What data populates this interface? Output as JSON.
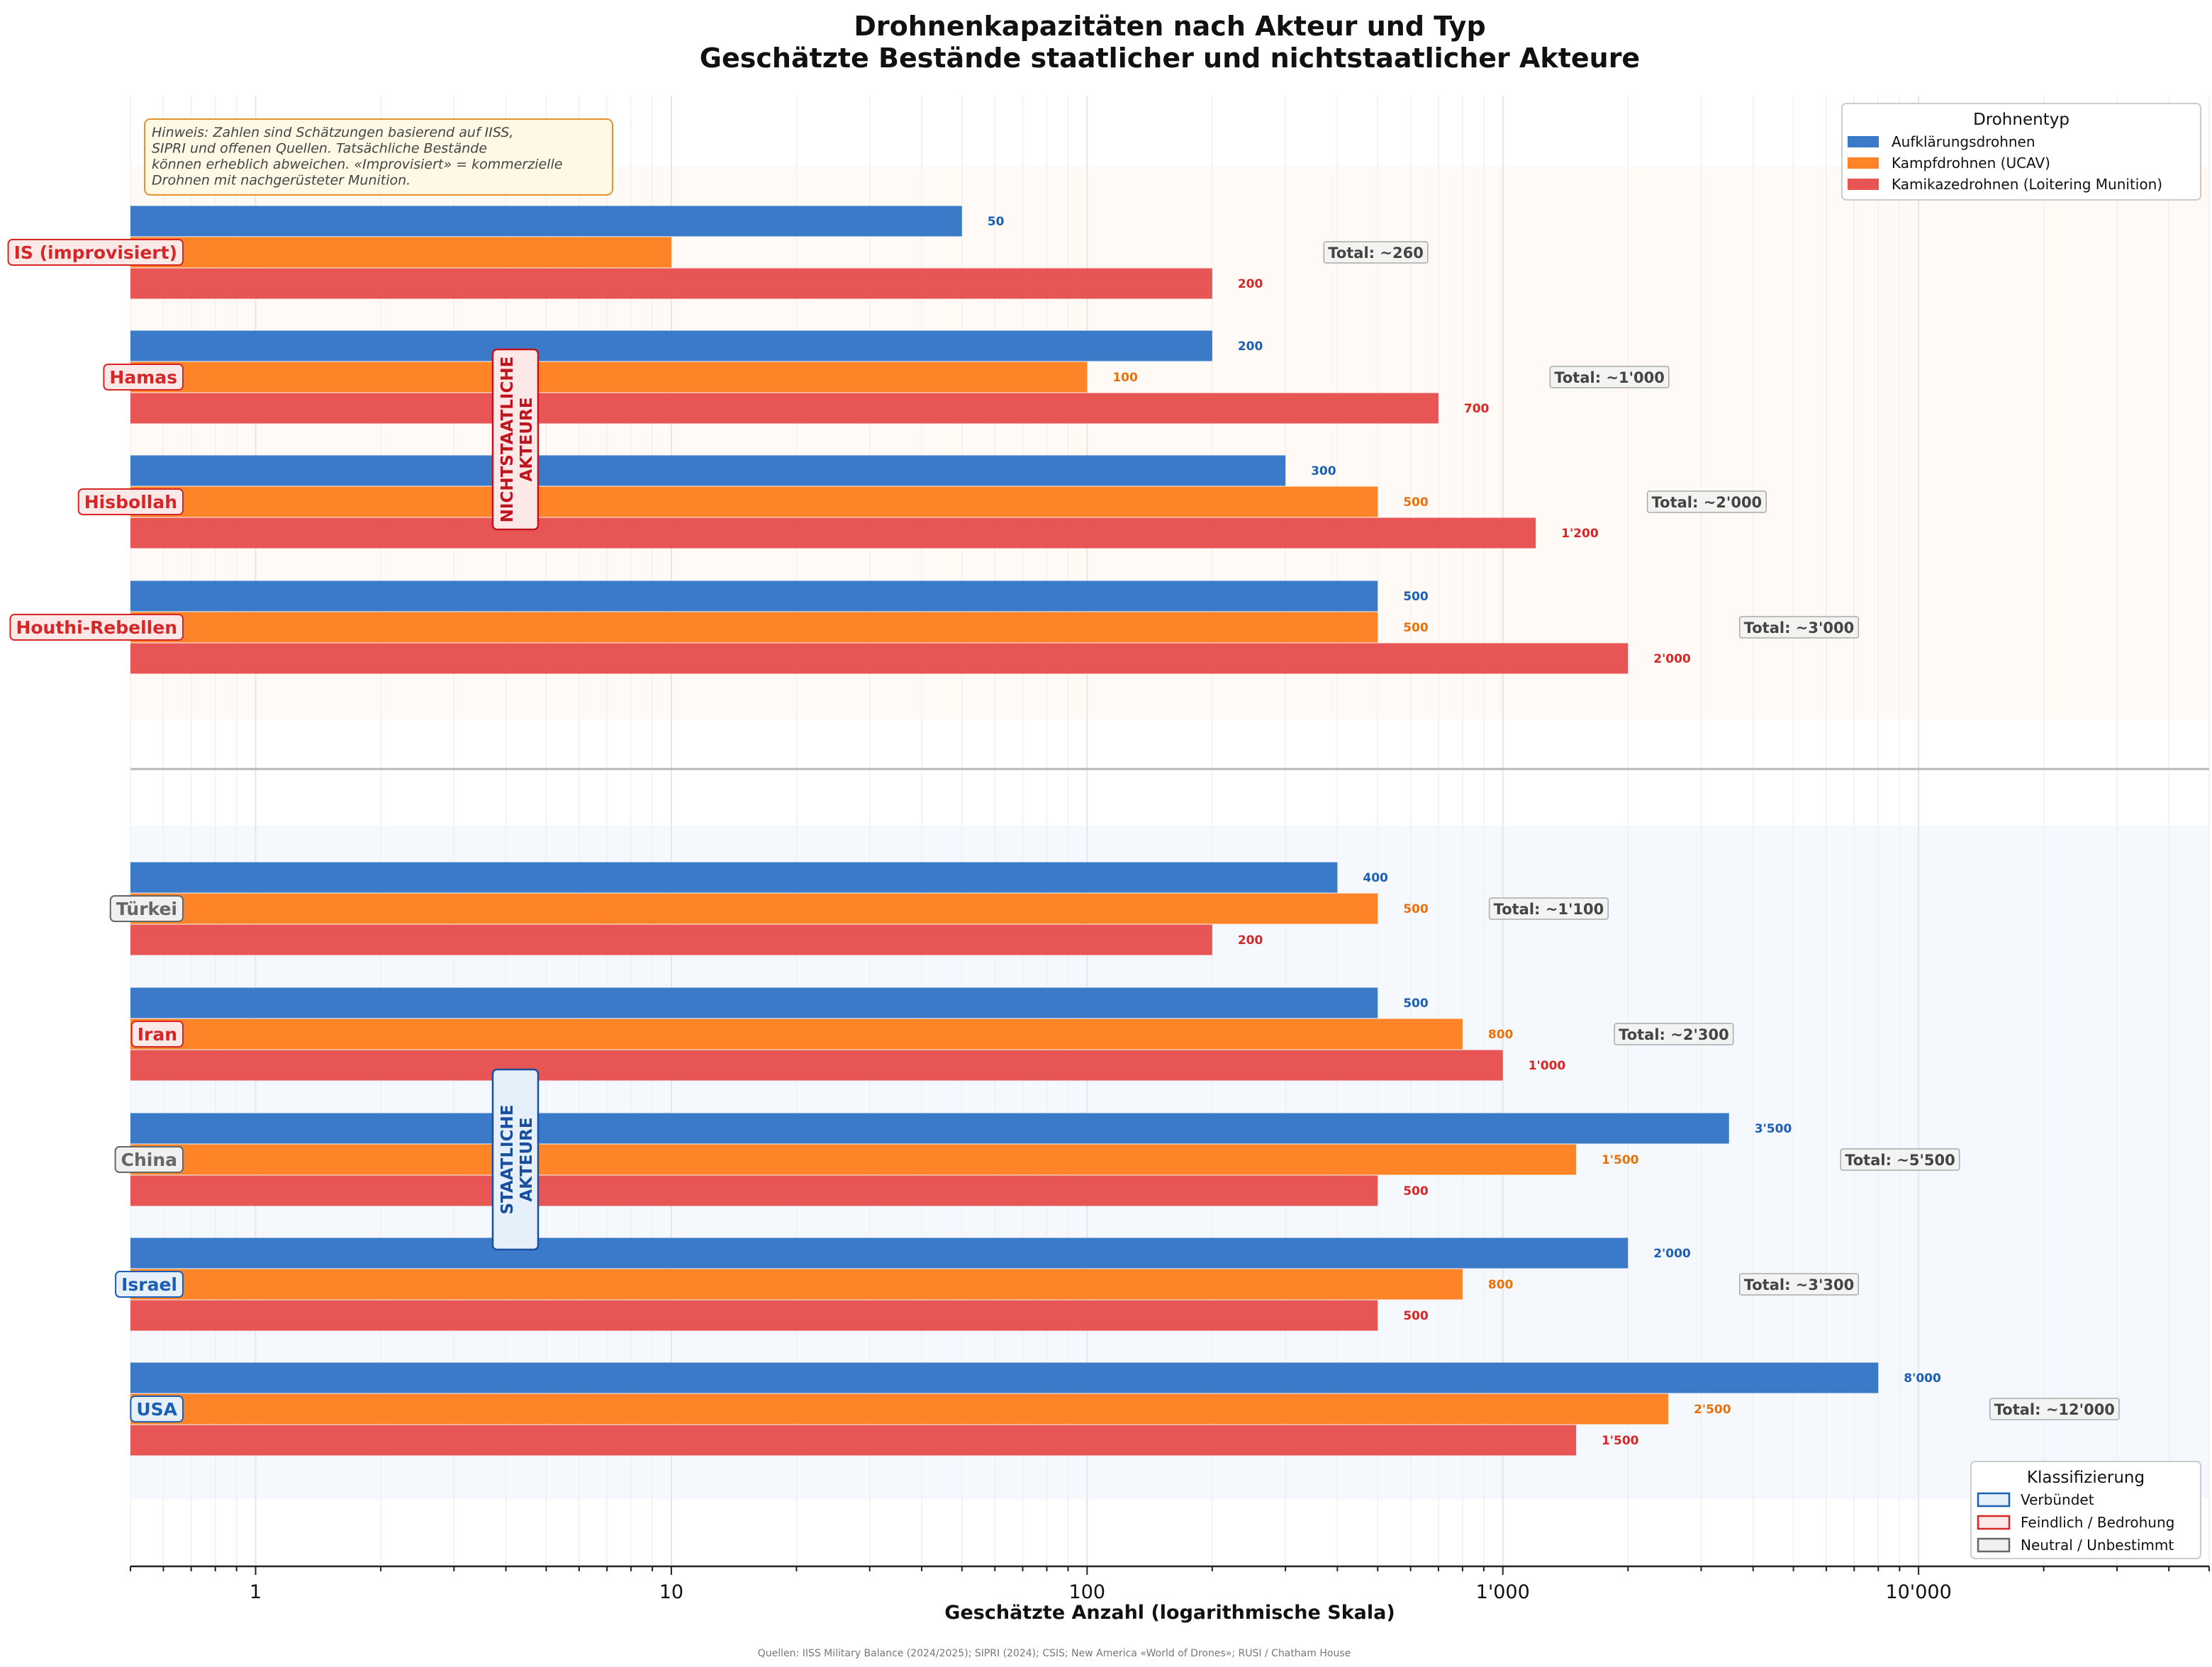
{
  "chart_data": {
    "type": "bar",
    "orientation": "horizontal",
    "title": "Drohnenkapazitäten nach Akteur und Typ",
    "subtitle": "Geschätzte Bestände staatlicher und nichtstaatlicher Akteure",
    "xlabel": "Geschätzte Anzahl (logarithmische Skala)",
    "xscale": "log",
    "xlim": [
      0.5,
      50000
    ],
    "x_ticks": [
      {
        "value": 1,
        "label": "1"
      },
      {
        "value": 10,
        "label": "10"
      },
      {
        "value": 100,
        "label": "100"
      },
      {
        "value": 1000,
        "label": "1'000"
      },
      {
        "value": 10000,
        "label": "10'000"
      }
    ],
    "series": [
      {
        "key": "recon",
        "name": "Aufklärungsdrohnen",
        "color": "#3a7ac8",
        "label_color": "#1a5fb4"
      },
      {
        "key": "ucav",
        "name": "Kampfdrohnen (UCAV)",
        "color": "#ff8428",
        "label_color": "#e8710a"
      },
      {
        "key": "kamikaze",
        "name": "Kamikazedrohnen (Loitering Munition)",
        "color": "#e85555",
        "label_color": "#d62728"
      }
    ],
    "groups": [
      {
        "name": "NICHTSTAATLICHE AKTEURE",
        "color": "#c0141e",
        "actors": [
          {
            "name": "IS (improvisiert)",
            "class": "hostile",
            "values": [
              50,
              10,
              200
            ],
            "labels": [
              "50",
              "",
              "200"
            ],
            "total": "Total: ~260"
          },
          {
            "name": "Hamas",
            "class": "hostile",
            "values": [
              200,
              100,
              700
            ],
            "labels": [
              "200",
              "100",
              "700"
            ],
            "total": "Total: ~1'000"
          },
          {
            "name": "Hisbollah",
            "class": "hostile",
            "values": [
              300,
              500,
              1200
            ],
            "labels": [
              "300",
              "500",
              "1'200"
            ],
            "total": "Total: ~2'000"
          },
          {
            "name": "Houthi-Rebellen",
            "class": "hostile",
            "values": [
              500,
              500,
              2000
            ],
            "labels": [
              "500",
              "500",
              "2'000"
            ],
            "total": "Total: ~3'000"
          }
        ]
      },
      {
        "name": "STAATLICHE AKTEURE",
        "color": "#1a4fa0",
        "actors": [
          {
            "name": "Türkei",
            "class": "neutral",
            "values": [
              400,
              500,
              200
            ],
            "labels": [
              "400",
              "500",
              "200"
            ],
            "total": "Total: ~1'100"
          },
          {
            "name": "Iran",
            "class": "hostile",
            "values": [
              500,
              800,
              1000
            ],
            "labels": [
              "500",
              "800",
              "1'000"
            ],
            "total": "Total: ~2'300"
          },
          {
            "name": "China",
            "class": "neutral",
            "values": [
              3500,
              1500,
              500
            ],
            "labels": [
              "3'500",
              "1'500",
              "500"
            ],
            "total": "Total: ~5'500"
          },
          {
            "name": "Israel",
            "class": "allied",
            "values": [
              2000,
              800,
              500
            ],
            "labels": [
              "2'000",
              "800",
              "500"
            ],
            "total": "Total: ~3'300"
          },
          {
            "name": "USA",
            "class": "allied",
            "values": [
              8000,
              2500,
              1500
            ],
            "labels": [
              "8'000",
              "2'500",
              "1'500"
            ],
            "total": "Total: ~12'000"
          }
        ]
      }
    ],
    "legend": {
      "title": "Drohnentyp",
      "placement": "top-right"
    },
    "classification_legend": {
      "title": "Klassifizierung",
      "placement": "bottom-right",
      "items": [
        {
          "key": "allied",
          "label": "Verbündet",
          "edge": "#1a5fb4",
          "face": "#e6f0fa",
          "text": "#1a5fb4"
        },
        {
          "key": "hostile",
          "label": "Feindlich / Bedrohung",
          "edge": "#d62728",
          "face": "#fde8e8",
          "text": "#d62728"
        },
        {
          "key": "neutral",
          "label": "Neutral / Unbestimmt",
          "edge": "#666666",
          "face": "#f0f0f0",
          "text": "#666666"
        }
      ]
    },
    "note_lines": [
      "Hinweis: Zahlen sind Schätzungen basierend auf IISS,",
      "SIPRI und offenen Quellen. Tatsächliche Bestände",
      "können erheblich abweichen. «Improvisiert» = kommerzielle",
      "Drohnen mit nachgerüsteter Munition."
    ],
    "source": "Quellen: IISS Military Balance (2024/2025); SIPRI (2024); CSIS; New America «World of Drones»; RUSI / Chatham House"
  }
}
